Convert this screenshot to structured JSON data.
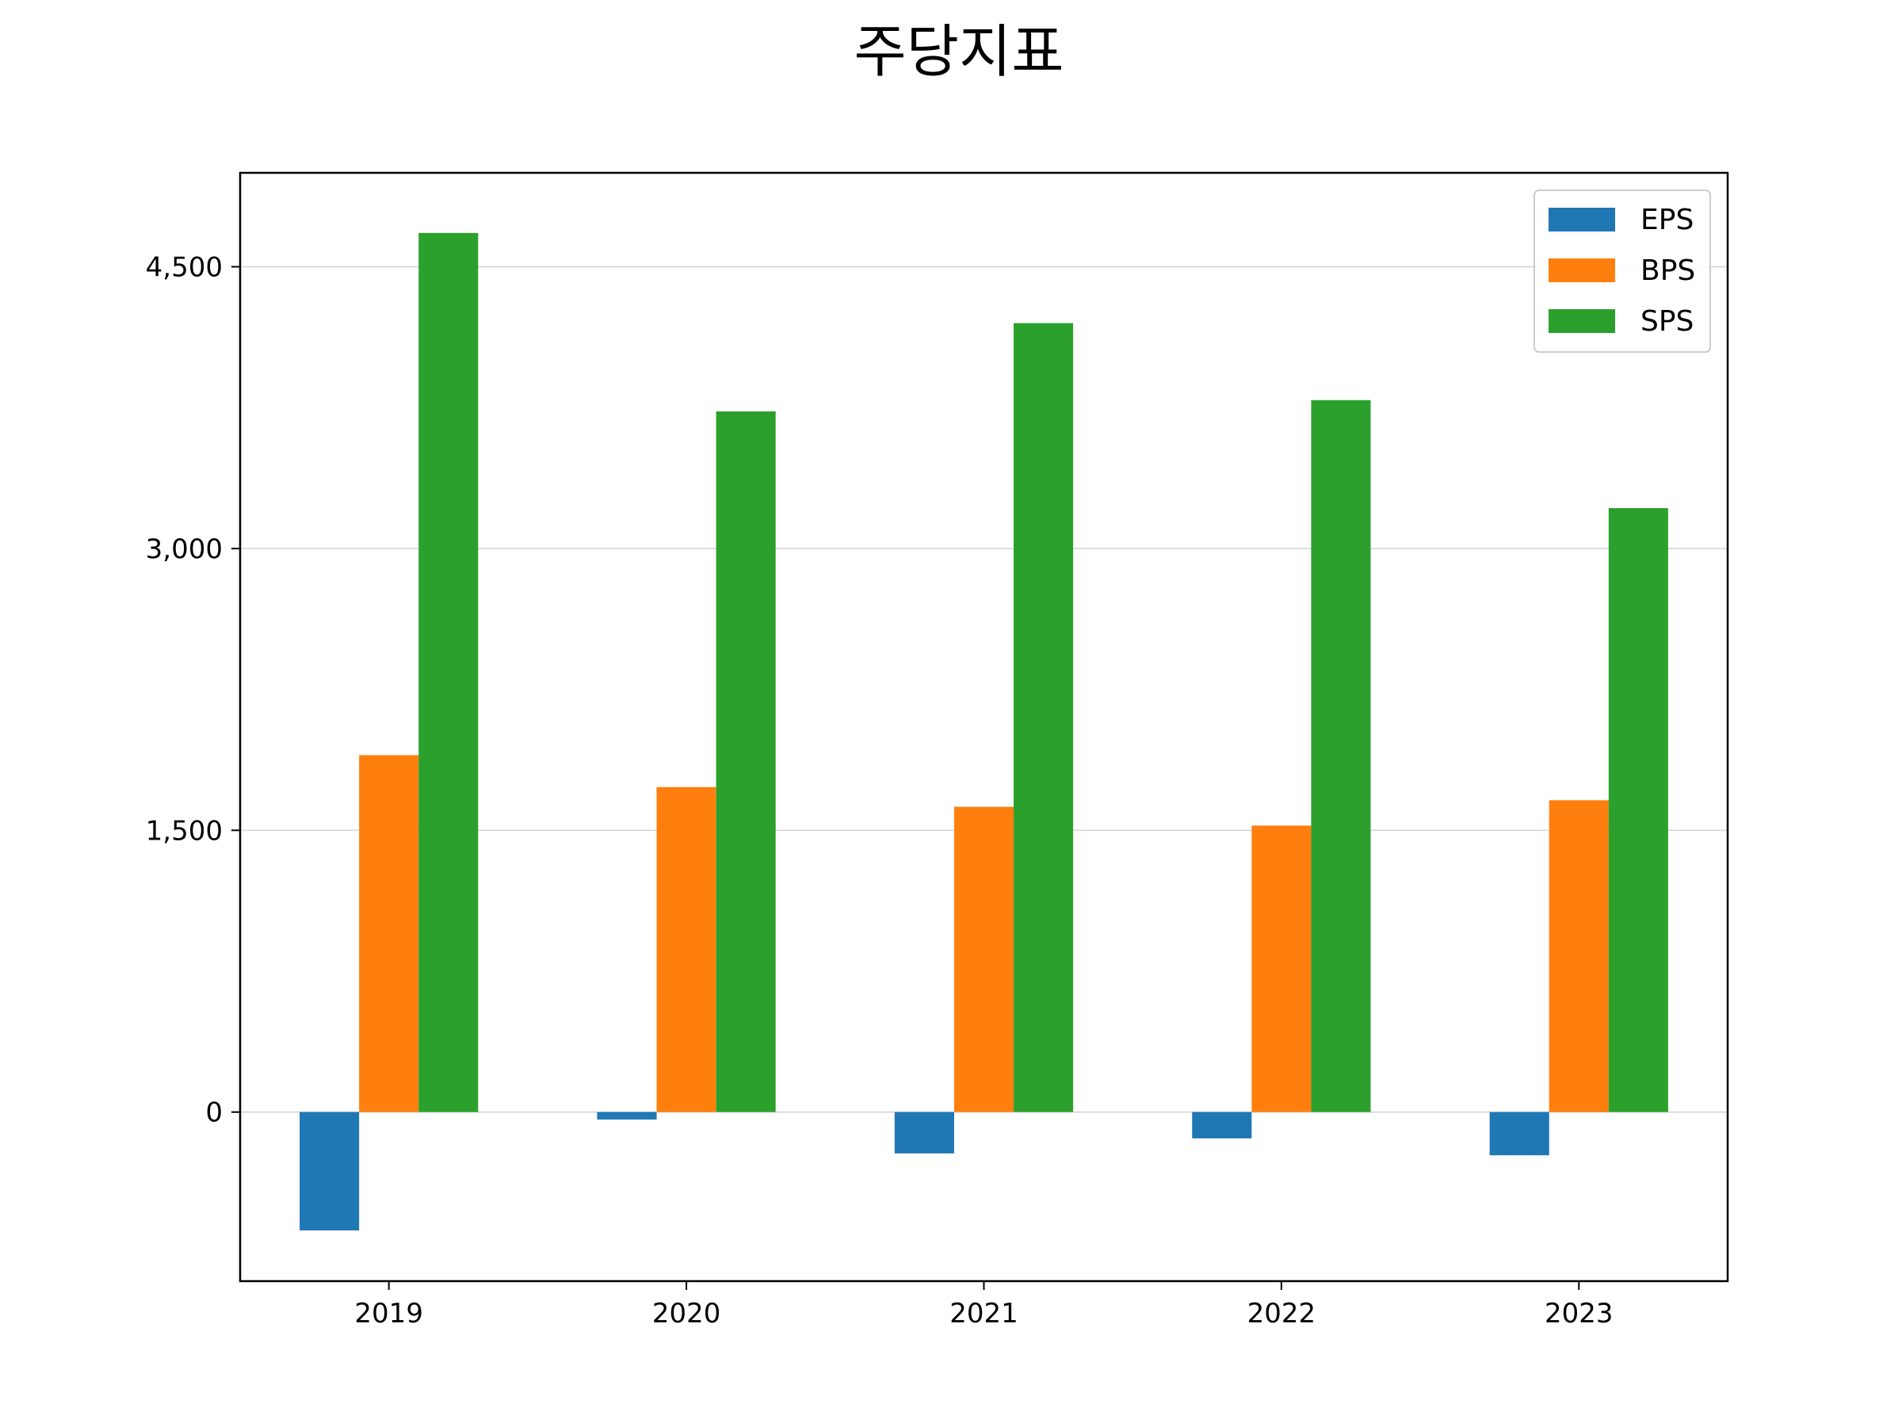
{
  "chart_data": {
    "type": "bar",
    "title": "주당지표",
    "xlabel": "",
    "ylabel": "",
    "categories": [
      "2019",
      "2020",
      "2021",
      "2022",
      "2023"
    ],
    "series": [
      {
        "name": "EPS",
        "values": [
          -630,
          -40,
          -220,
          -140,
          -230
        ],
        "color": "#1f77b4"
      },
      {
        "name": "BPS",
        "values": [
          1900,
          1730,
          1625,
          1525,
          1660
        ],
        "color": "#ff7f0e"
      },
      {
        "name": "SPS",
        "values": [
          4680,
          3730,
          4200,
          3790,
          3215
        ],
        "color": "#2ca02c"
      }
    ],
    "ylim": [
      -900,
      5000
    ],
    "yticks": [
      0,
      1500,
      3000,
      4500
    ],
    "ytick_labels": [
      "0",
      "1,500",
      "3,000",
      "4,500"
    ],
    "grid": "horizontal",
    "grid_color": "#d3d3d3",
    "legend_position": "top-right"
  }
}
